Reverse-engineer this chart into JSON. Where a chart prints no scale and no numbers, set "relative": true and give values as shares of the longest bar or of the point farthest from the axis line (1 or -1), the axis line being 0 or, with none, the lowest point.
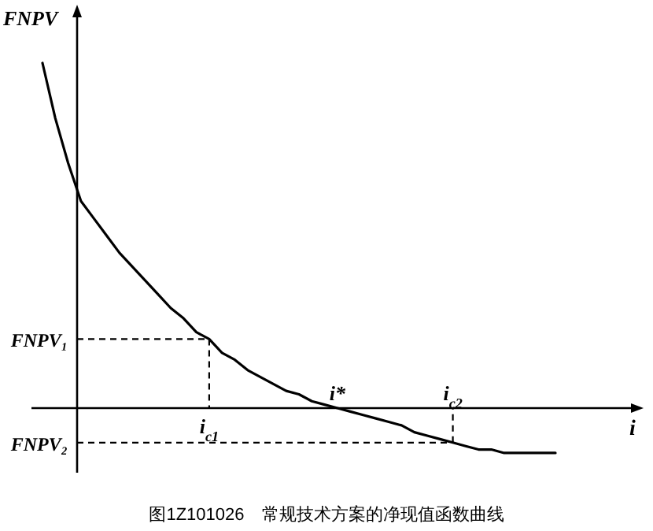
{
  "chart_data": {
    "type": "line",
    "relative": true,
    "title": "图1Z101026　常规技术方案的净现值函数曲线",
    "xlabel": "i",
    "ylabel": "FNPV",
    "categories": [
      null,
      null,
      null,
      null,
      null,
      null,
      null,
      null,
      null,
      null,
      null,
      null,
      null,
      "i$_{c1}$",
      null,
      null,
      null,
      null,
      null,
      null,
      null,
      null,
      null,
      "i*",
      null,
      null,
      null,
      null,
      null,
      null,
      null,
      null,
      "i$_{c2}$",
      null,
      null,
      null,
      null,
      null,
      null,
      null,
      null
    ],
    "series": [
      {
        "color": "#000000",
        "values": [
          1.0,
          0.84,
          0.71,
          0.6,
          0.55,
          0.5,
          0.45,
          0.41,
          0.37,
          0.33,
          0.29,
          0.26,
          0.22,
          0.2,
          0.16,
          0.14,
          0.11,
          0.09,
          0.07,
          0.05,
          0.04,
          0.02,
          0.01,
          0,
          -0.01,
          -0.02,
          -0.03,
          -0.04,
          -0.05,
          -0.07,
          -0.08,
          -0.09,
          -0.1,
          -0.11,
          -0.12,
          -0.12,
          -0.13,
          -0.13,
          -0.13,
          -0.13,
          -0.13
        ]
      }
    ],
    "annotations": [
      {
        "text": "FNPV₁",
        "x": "i$_{c1}$",
        "y": 0.2
      },
      {
        "text": "FNPV₂",
        "x": "i$_{c2}$",
        "y": -0.1
      }
    ],
    "marker": "none",
    "line_style": "solid",
    "tick_labels": "x"
  }
}
